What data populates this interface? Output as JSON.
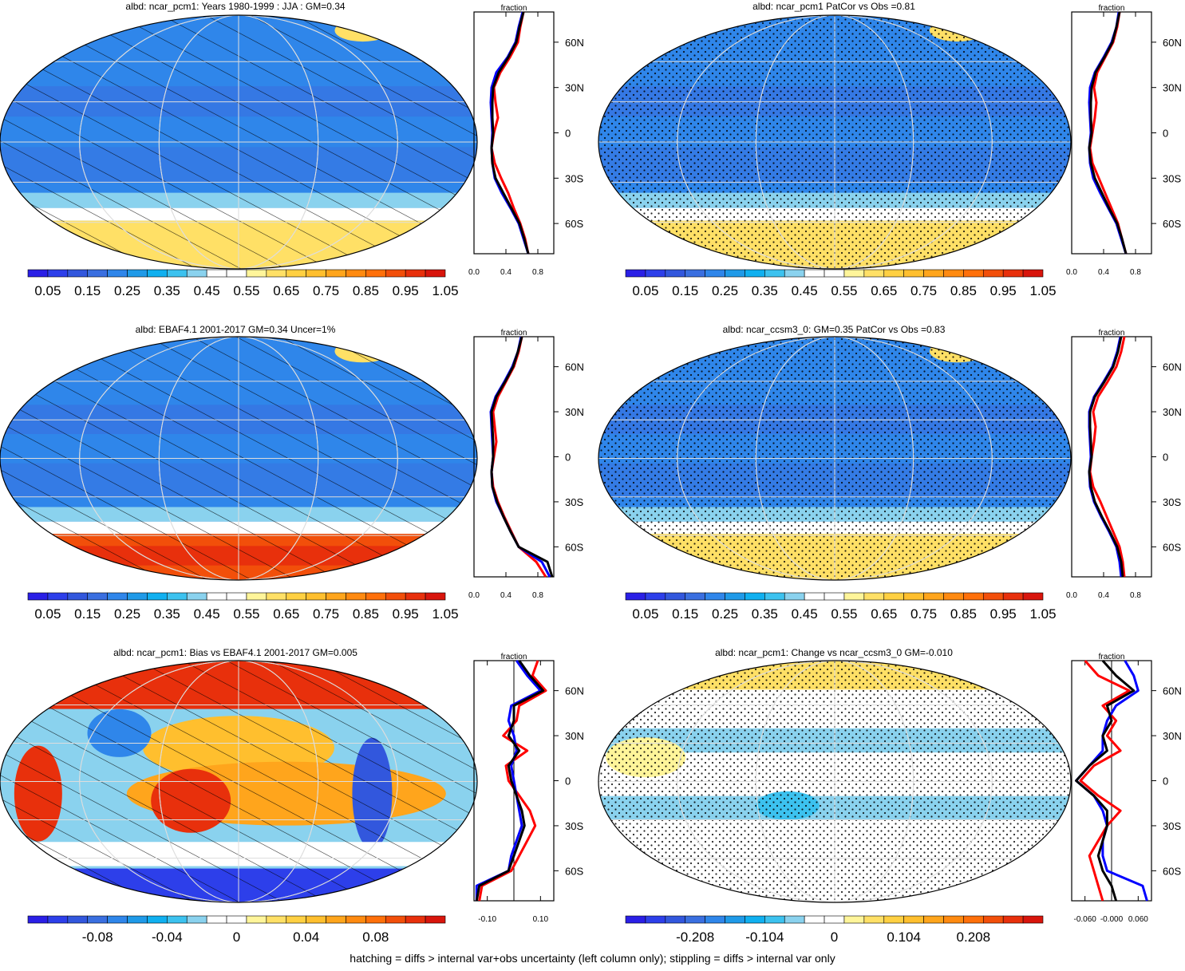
{
  "caption": "hatching = diffs > internal var+obs uncertainty (left column only); stippling = diffs > internal var only",
  "colors": {
    "abs_scale": [
      "#2a1fe6",
      "#2d3fea",
      "#3257dd",
      "#3a6fe0",
      "#2f86ea",
      "#1f9ae8",
      "#10b0f0",
      "#3cc2ef",
      "#8ad2ee",
      "#ffffff",
      "#ffffff",
      "#fff59a",
      "#ffe066",
      "#ffd042",
      "#ffbf2e",
      "#ffa51c",
      "#ff8a10",
      "#ff700a",
      "#f24f0a",
      "#e8300c",
      "#d8150c"
    ],
    "diff_scale": [
      "#2a1fe6",
      "#2d3fea",
      "#3257dd",
      "#3a6fe0",
      "#2f86ea",
      "#1f9ae8",
      "#10b0f0",
      "#3cc2ef",
      "#8ad2ee",
      "#ffffff",
      "#ffffff",
      "#fff59a",
      "#ffe066",
      "#ffd042",
      "#ffbf2e",
      "#ffa51c",
      "#ff8a10",
      "#ff700a",
      "#f24f0a",
      "#e8300c",
      "#d8150c"
    ],
    "model_line": "#ff0000",
    "obs_line": "#0000ff",
    "third_line": "#000000"
  },
  "chart_data": [
    {
      "type": "heatmap",
      "title": "albd: ncar_pcm1: Years 1980-1999 : JJA : GM=0.34",
      "colorbar_labels": [
        "0.05",
        "0.15",
        "0.25",
        "0.35",
        "0.45",
        "0.55",
        "0.65",
        "0.75",
        "0.85",
        "0.95",
        "1.05"
      ],
      "pattern": "hatching",
      "field": "absolute",
      "zonal_mean": {
        "xlabel": "fraction",
        "xticks": [
          "0.0",
          "0.4",
          "0.8"
        ],
        "xlim": [
          0.0,
          1.0
        ],
        "yticks": [
          "60N",
          "30N",
          "0",
          "30S",
          "60S"
        ],
        "lat": [
          80,
          70,
          60,
          50,
          40,
          30,
          20,
          10,
          0,
          -10,
          -20,
          -30,
          -40,
          -50,
          -60,
          -70,
          -80
        ],
        "series": [
          {
            "values": [
              0.62,
              0.58,
              0.55,
              0.45,
              0.33,
              0.25,
              0.27,
              0.3,
              0.25,
              0.22,
              0.26,
              0.34,
              0.43,
              0.5,
              0.58,
              0.64,
              0.68
            ]
          },
          {
            "values": [
              0.61,
              0.56,
              0.52,
              0.42,
              0.28,
              0.22,
              0.21,
              0.22,
              0.23,
              0.22,
              0.23,
              0.26,
              0.35,
              0.46,
              0.56,
              0.62,
              0.68
            ]
          },
          {
            "values": [
              0.62,
              0.57,
              0.53,
              0.43,
              0.31,
              0.24,
              0.23,
              0.23,
              0.24,
              0.22,
              0.23,
              0.27,
              0.37,
              0.47,
              0.57,
              0.63,
              0.68
            ]
          }
        ]
      }
    },
    {
      "type": "heatmap",
      "title": "albd: ncar_pcm1 PatCor vs Obs =0.81",
      "colorbar_labels": [
        "0.05",
        "0.15",
        "0.25",
        "0.35",
        "0.45",
        "0.55",
        "0.65",
        "0.75",
        "0.85",
        "0.95",
        "1.05"
      ],
      "pattern": "stippling",
      "field": "absolute",
      "zonal_mean": {
        "xlabel": "fraction",
        "xticks": [
          "0.0",
          "0.4",
          "0.8"
        ],
        "xlim": [
          0.0,
          1.0
        ],
        "yticks": [
          "60N",
          "30N",
          "0",
          "30S",
          "60S"
        ],
        "lat": [
          80,
          70,
          60,
          50,
          40,
          30,
          20,
          10,
          0,
          -10,
          -20,
          -30,
          -40,
          -50,
          -60,
          -70,
          -80
        ],
        "series": [
          {
            "values": [
              0.6,
              0.57,
              0.52,
              0.42,
              0.32,
              0.28,
              0.31,
              0.29,
              0.26,
              0.23,
              0.26,
              0.34,
              0.42,
              0.5,
              0.58,
              0.63,
              0.68
            ]
          },
          {
            "values": [
              0.59,
              0.56,
              0.5,
              0.4,
              0.29,
              0.23,
              0.22,
              0.23,
              0.24,
              0.22,
              0.23,
              0.27,
              0.36,
              0.46,
              0.56,
              0.62,
              0.68
            ]
          },
          {
            "values": [
              0.6,
              0.56,
              0.51,
              0.41,
              0.3,
              0.25,
              0.24,
              0.24,
              0.25,
              0.22,
              0.24,
              0.29,
              0.38,
              0.47,
              0.57,
              0.63,
              0.68
            ]
          }
        ]
      }
    },
    {
      "type": "heatmap",
      "title": "albd: EBAF4.1 2001-2017 GM=0.34 Uncer=1%",
      "colorbar_labels": [
        "0.05",
        "0.15",
        "0.25",
        "0.35",
        "0.45",
        "0.55",
        "0.65",
        "0.75",
        "0.85",
        "0.95",
        "1.05"
      ],
      "pattern": "hatching",
      "field": "absolute",
      "zonal_mean": {
        "xlabel": "fraction",
        "xticks": [
          "0.0",
          "0.4",
          "0.8"
        ],
        "xlim": [
          0.0,
          1.0
        ],
        "yticks": [
          "60N",
          "30N",
          "0",
          "30S",
          "60S"
        ],
        "lat": [
          80,
          70,
          60,
          50,
          40,
          30,
          20,
          10,
          0,
          -10,
          -20,
          -30,
          -40,
          -50,
          -60,
          -70,
          -80
        ],
        "series": [
          {
            "values": [
              0.6,
              0.56,
              0.5,
              0.4,
              0.3,
              0.24,
              0.26,
              0.28,
              0.25,
              0.22,
              0.24,
              0.3,
              0.38,
              0.47,
              0.56,
              0.78,
              0.9
            ]
          },
          {
            "values": [
              0.59,
              0.55,
              0.48,
              0.38,
              0.27,
              0.21,
              0.22,
              0.23,
              0.24,
              0.22,
              0.23,
              0.28,
              0.37,
              0.46,
              0.56,
              0.85,
              0.95
            ]
          },
          {
            "values": [
              0.6,
              0.55,
              0.49,
              0.39,
              0.28,
              0.22,
              0.23,
              0.24,
              0.24,
              0.22,
              0.23,
              0.29,
              0.37,
              0.46,
              0.56,
              0.92,
              0.98
            ]
          }
        ]
      }
    },
    {
      "type": "heatmap",
      "title": "albd: ncar_ccsm3_0: GM=0.35 PatCor vs Obs =0.83",
      "colorbar_labels": [
        "0.05",
        "0.15",
        "0.25",
        "0.35",
        "0.45",
        "0.55",
        "0.65",
        "0.75",
        "0.85",
        "0.95",
        "1.05"
      ],
      "pattern": "stippling",
      "field": "absolute",
      "zonal_mean": {
        "xlabel": "fraction",
        "xticks": [
          "0.0",
          "0.4",
          "0.8"
        ],
        "xlim": [
          0.0,
          1.0
        ],
        "yticks": [
          "60N",
          "30N",
          "0",
          "30S",
          "60S"
        ],
        "lat": [
          80,
          70,
          60,
          50,
          40,
          30,
          20,
          10,
          0,
          -10,
          -20,
          -30,
          -40,
          -50,
          -60,
          -70,
          -80
        ],
        "series": [
          {
            "values": [
              0.66,
              0.62,
              0.56,
              0.45,
              0.33,
              0.27,
              0.3,
              0.28,
              0.25,
              0.23,
              0.27,
              0.36,
              0.44,
              0.52,
              0.6,
              0.64,
              0.66
            ]
          },
          {
            "values": [
              0.61,
              0.57,
              0.51,
              0.4,
              0.28,
              0.22,
              0.22,
              0.23,
              0.24,
              0.22,
              0.23,
              0.28,
              0.37,
              0.47,
              0.56,
              0.6,
              0.62
            ]
          },
          {
            "values": [
              0.62,
              0.58,
              0.52,
              0.41,
              0.29,
              0.23,
              0.23,
              0.24,
              0.25,
              0.22,
              0.24,
              0.29,
              0.38,
              0.48,
              0.57,
              0.62,
              0.64
            ]
          }
        ]
      }
    },
    {
      "type": "heatmap",
      "title": "albd: ncar_pcm1: Bias vs EBAF4.1 2001-2017 GM=0.005",
      "colorbar_labels": [
        "-0.08",
        "-0.04",
        "0",
        "0.04",
        "0.08"
      ],
      "pattern": "hatching",
      "field": "bias",
      "zonal_mean": {
        "xlabel": "fraction",
        "xticks": [
          "-0.10",
          "0.10"
        ],
        "xlim": [
          -0.15,
          0.15
        ],
        "yticks": [
          "60N",
          "30N",
          "0",
          "30S",
          "60S"
        ],
        "lat": [
          80,
          70,
          60,
          50,
          40,
          30,
          20,
          10,
          0,
          -10,
          -20,
          -30,
          -40,
          -50,
          -60,
          -70,
          -80
        ],
        "series": [
          {
            "values": [
              0.09,
              0.07,
              0.12,
              0.02,
              0.01,
              -0.04,
              0.05,
              -0.03,
              -0.02,
              0.02,
              0.06,
              0.08,
              0.05,
              0.02,
              -0.01,
              -0.12,
              -0.13
            ]
          },
          {
            "values": [
              0.01,
              0.05,
              0.1,
              -0.01,
              -0.02,
              0.0,
              0.01,
              -0.01,
              0.0,
              0.01,
              0.02,
              0.03,
              0.01,
              -0.01,
              -0.02,
              -0.14,
              -0.14
            ]
          },
          {
            "values": [
              0.02,
              0.06,
              0.11,
              0.0,
              0.0,
              -0.02,
              0.02,
              -0.02,
              -0.01,
              0.01,
              0.03,
              0.04,
              0.02,
              0.0,
              -0.02,
              -0.13,
              -0.14
            ]
          }
        ]
      }
    },
    {
      "type": "heatmap",
      "title": "albd: ncar_pcm1: Change vs ncar_ccsm3_0 GM=-0.010",
      "colorbar_labels": [
        "-0.208",
        "-0.104",
        "0",
        "0.104",
        "0.208"
      ],
      "pattern": "stippling",
      "field": "change",
      "zonal_mean": {
        "xlabel": "fraction",
        "xticks": [
          "-0.060",
          "-0.000",
          "0.060"
        ],
        "xlim": [
          -0.09,
          0.09
        ],
        "yticks": [
          "60N",
          "30N",
          "0",
          "30S",
          "60S"
        ],
        "lat": [
          80,
          70,
          60,
          50,
          40,
          30,
          20,
          10,
          0,
          -10,
          -20,
          -30,
          -40,
          -50,
          -60,
          -70,
          -80
        ],
        "series": [
          {
            "values": [
              -0.06,
              -0.03,
              0.04,
              -0.02,
              0.01,
              -0.01,
              0.02,
              -0.04,
              -0.07,
              -0.03,
              0.02,
              -0.01,
              -0.03,
              -0.05,
              -0.04,
              -0.03,
              -0.02
            ]
          },
          {
            "values": [
              0.03,
              0.05,
              0.06,
              0.01,
              -0.01,
              -0.02,
              -0.02,
              -0.05,
              -0.08,
              -0.04,
              -0.02,
              -0.01,
              -0.02,
              -0.02,
              -0.01,
              0.07,
              0.08
            ]
          },
          {
            "values": [
              -0.02,
              0.01,
              0.05,
              -0.01,
              0.0,
              -0.02,
              -0.01,
              -0.05,
              -0.08,
              -0.04,
              -0.01,
              -0.01,
              -0.02,
              -0.03,
              -0.02,
              0.0,
              0.01
            ]
          }
        ]
      }
    }
  ]
}
